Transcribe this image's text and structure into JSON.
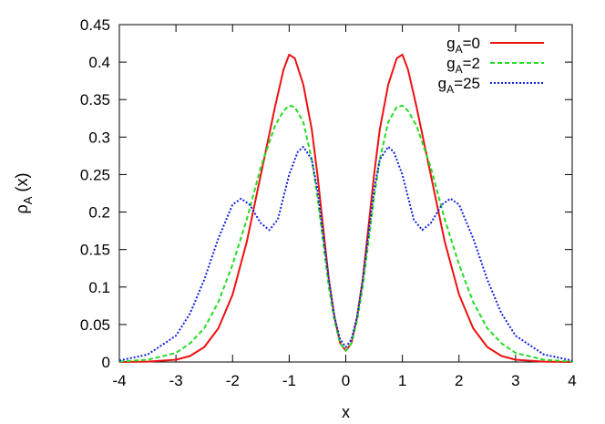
{
  "chart_data": {
    "type": "line",
    "title": "",
    "xlabel": "x",
    "ylabel": {
      "main": "ρ",
      "sub": "A",
      "rest": " (x)"
    },
    "xlim": [
      -4,
      4
    ],
    "ylim": [
      0,
      0.45
    ],
    "xticks": [
      "-4",
      "-3",
      "-2",
      "-1",
      "0",
      "1",
      "2",
      "3",
      "4"
    ],
    "yticks": [
      "0",
      "0.05",
      "0.1",
      "0.15",
      "0.2",
      "0.25",
      "0.3",
      "0.35",
      "0.4",
      "0.45"
    ],
    "grid": false,
    "legend_position": "top-right",
    "series": [
      {
        "name": {
          "main": "g",
          "sub": "A",
          "rest": "=0"
        },
        "color": "#ee1111",
        "dash": "solid",
        "x": [
          -4.0,
          -3.5,
          -3.0,
          -2.75,
          -2.5,
          -2.25,
          -2.0,
          -1.75,
          -1.5,
          -1.25,
          -1.1,
          -1.0,
          -0.9,
          -0.75,
          -0.6,
          -0.5,
          -0.4,
          -0.3,
          -0.2,
          -0.1,
          0.0,
          0.1,
          0.2,
          0.3,
          0.4,
          0.5,
          0.6,
          0.75,
          0.9,
          1.0,
          1.1,
          1.25,
          1.5,
          1.75,
          2.0,
          2.25,
          2.5,
          2.75,
          3.0,
          3.5,
          4.0
        ],
        "y": [
          0.0,
          0.0005,
          0.003,
          0.008,
          0.02,
          0.045,
          0.09,
          0.16,
          0.25,
          0.34,
          0.39,
          0.41,
          0.405,
          0.37,
          0.31,
          0.25,
          0.18,
          0.11,
          0.06,
          0.025,
          0.015,
          0.025,
          0.06,
          0.11,
          0.18,
          0.25,
          0.31,
          0.37,
          0.405,
          0.41,
          0.39,
          0.34,
          0.25,
          0.16,
          0.09,
          0.045,
          0.02,
          0.008,
          0.003,
          0.0005,
          0.0
        ]
      },
      {
        "name": {
          "main": "g",
          "sub": "A",
          "rest": "=2"
        },
        "color": "#22dd22",
        "dash": "dashed",
        "x": [
          -4.0,
          -3.5,
          -3.0,
          -2.75,
          -2.5,
          -2.25,
          -2.0,
          -1.75,
          -1.5,
          -1.25,
          -1.1,
          -1.0,
          -0.9,
          -0.75,
          -0.6,
          -0.5,
          -0.4,
          -0.3,
          -0.2,
          -0.1,
          0.0,
          0.1,
          0.2,
          0.3,
          0.4,
          0.5,
          0.6,
          0.75,
          0.9,
          1.0,
          1.1,
          1.25,
          1.5,
          1.75,
          2.0,
          2.25,
          2.5,
          2.75,
          3.0,
          3.5,
          4.0
        ],
        "y": [
          0.0005,
          0.003,
          0.012,
          0.025,
          0.045,
          0.08,
          0.13,
          0.19,
          0.26,
          0.315,
          0.335,
          0.342,
          0.34,
          0.32,
          0.27,
          0.22,
          0.16,
          0.1,
          0.055,
          0.025,
          0.015,
          0.025,
          0.055,
          0.1,
          0.16,
          0.22,
          0.27,
          0.32,
          0.34,
          0.342,
          0.335,
          0.315,
          0.26,
          0.19,
          0.13,
          0.08,
          0.045,
          0.025,
          0.012,
          0.003,
          0.0005
        ]
      },
      {
        "name": {
          "main": "g",
          "sub": "A",
          "rest": "=25"
        },
        "color": "#1122dd",
        "dash": "dotted",
        "x": [
          -4.0,
          -3.5,
          -3.0,
          -2.75,
          -2.5,
          -2.25,
          -2.0,
          -1.85,
          -1.7,
          -1.5,
          -1.35,
          -1.2,
          -1.0,
          -0.85,
          -0.75,
          -0.6,
          -0.5,
          -0.4,
          -0.3,
          -0.2,
          -0.1,
          0.0,
          0.1,
          0.2,
          0.3,
          0.4,
          0.5,
          0.6,
          0.75,
          0.85,
          1.0,
          1.2,
          1.35,
          1.5,
          1.7,
          1.85,
          2.0,
          2.25,
          2.5,
          2.75,
          3.0,
          3.5,
          4.0
        ],
        "y": [
          0.002,
          0.01,
          0.035,
          0.065,
          0.11,
          0.165,
          0.21,
          0.218,
          0.21,
          0.185,
          0.176,
          0.19,
          0.25,
          0.28,
          0.287,
          0.27,
          0.23,
          0.17,
          0.11,
          0.06,
          0.03,
          0.02,
          0.03,
          0.06,
          0.11,
          0.17,
          0.23,
          0.27,
          0.287,
          0.28,
          0.25,
          0.19,
          0.176,
          0.185,
          0.21,
          0.218,
          0.21,
          0.165,
          0.11,
          0.065,
          0.035,
          0.01,
          0.002
        ]
      }
    ]
  }
}
